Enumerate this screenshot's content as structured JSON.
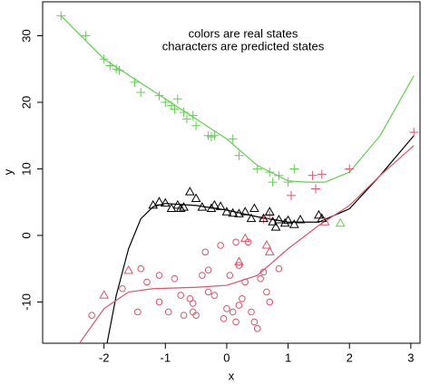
{
  "chart_data": {
    "type": "scatter",
    "xlabel": "x",
    "ylabel": "y",
    "annotations": [
      {
        "text": "colors are real states",
        "color": "#ff0000"
      },
      {
        "text": "characters are predicted states",
        "color": "#000000"
      }
    ],
    "xlim": [
      -3.0,
      3.15
    ],
    "ylim": [
      -16.2,
      35.1
    ],
    "xticks": [
      -2,
      -1,
      0,
      1,
      2,
      3
    ],
    "yticks": [
      -10,
      0,
      10,
      20,
      30
    ],
    "series": [
      {
        "color": "#61D04F",
        "marker": "plus",
        "x": [
          -2.7,
          -2.3,
          -2.0,
          -1.9,
          -1.8,
          -1.75,
          -1.5,
          -1.4,
          -1.1,
          -1.0,
          -0.9,
          -0.85,
          -0.7,
          -0.65,
          -0.5,
          -0.3,
          -0.25,
          -0.2,
          0.1,
          0.2,
          0.5,
          0.7,
          0.75,
          0.85,
          1.0,
          1.1,
          -0.55,
          -0.8
        ],
        "y": [
          33,
          30,
          26.5,
          25.5,
          25,
          24.8,
          23,
          21.5,
          21,
          20,
          19.5,
          19,
          18.5,
          17.5,
          16.5,
          15,
          14.8,
          15,
          14.5,
          12,
          10,
          9.5,
          8,
          9,
          8,
          10,
          18,
          20.5
        ]
      },
      {
        "color": "#DF536B",
        "marker": "plus",
        "x": [
          1.4,
          1.55,
          1.05,
          1.45,
          2.0,
          3.05,
          0.6,
          0.7
        ],
        "y": [
          9,
          9.2,
          6,
          7,
          10,
          15.5,
          2.5,
          3
        ]
      },
      {
        "color": "#000000",
        "marker": "triangle",
        "x": [
          -1.2,
          -1.1,
          -0.9,
          -0.8,
          -0.7,
          -0.6,
          -0.5,
          -0.4,
          -0.25,
          -0.2,
          -0.1,
          0,
          0.1,
          0.2,
          0.3,
          0.4,
          0.45,
          0.6,
          0.7,
          0.75,
          0.8,
          0.85,
          0.95,
          1.0,
          1.1,
          1.2,
          1.5,
          1.55,
          -1.0,
          -0.75
        ],
        "y": [
          4.5,
          5,
          4,
          4.5,
          4.2,
          6.5,
          5.5,
          4.2,
          4,
          4.5,
          4.3,
          3.5,
          3.3,
          3.2,
          3.5,
          2.5,
          4,
          2.5,
          3.5,
          2,
          1.2,
          2.3,
          1.8,
          2.2,
          1.6,
          2.3,
          3,
          2.5,
          4.8,
          4
        ]
      },
      {
        "color": "#DF536B",
        "marker": "triangle",
        "x": [
          -2.0,
          -1.6,
          0.2,
          0.3,
          0.65,
          0.7,
          1.6
        ],
        "y": [
          -9,
          -5.3,
          -4,
          -0.5,
          -1.5,
          -2.5,
          2
        ]
      },
      {
        "color": "#61D04F",
        "marker": "triangle",
        "x": [
          1.85
        ],
        "y": [
          1.8
        ]
      },
      {
        "color": "#DF536B",
        "marker": "circle",
        "x": [
          -2.2,
          -1.7,
          -1.45,
          -1.4,
          -1.3,
          -1.1,
          -1.1,
          -0.95,
          -0.85,
          -0.75,
          -0.7,
          -0.6,
          -0.55,
          -0.55,
          -0.5,
          -0.4,
          -0.35,
          -0.3,
          -0.2,
          -0.1,
          -0.05,
          0,
          0.05,
          0.1,
          0.15,
          0.2,
          0.25,
          0.3,
          0.35,
          0.4,
          0.45,
          0.5,
          0.55,
          0.6,
          0.65,
          -0.3,
          0.2,
          0.7,
          0.85,
          0.15
        ],
        "y": [
          -12,
          -8,
          -11.5,
          -5,
          -7,
          -6,
          -10,
          -11.5,
          -6.5,
          -9,
          -12,
          -9.5,
          -10.2,
          -11.5,
          -12,
          -6,
          -2.5,
          -8.5,
          -9,
          -1.5,
          -12.5,
          -11,
          -6,
          -11.5,
          -13,
          -10.5,
          -9.5,
          -7,
          -1,
          -11.5,
          -13,
          -14,
          -6.5,
          -5.5,
          -8.5,
          -5.2,
          -4.5,
          -10,
          -5,
          -1
        ]
      }
    ],
    "lines": [
      {
        "color": "#61D04F",
        "x": [
          -2.7,
          -2.0,
          -1.0,
          0,
          0.5,
          1.0,
          1.3,
          1.6,
          2.0,
          2.5,
          3.05
        ],
        "y": [
          33,
          26.5,
          20.5,
          14.5,
          10.5,
          8.2,
          8,
          8,
          9.5,
          15,
          24
        ]
      },
      {
        "color": "#000000",
        "x": [
          -1.95,
          -1.8,
          -1.6,
          -1.4,
          -1.2,
          -1.0,
          -0.5,
          0,
          0.5,
          1.0,
          1.5,
          2.0,
          2.5,
          3.05
        ],
        "y": [
          -16.2,
          -9,
          -2,
          2.5,
          4.3,
          4.8,
          4.5,
          3.8,
          2.8,
          2,
          2,
          4,
          9,
          15
        ]
      },
      {
        "color": "#DF536B",
        "x": [
          -2.4,
          -2.0,
          -1.6,
          -1.2,
          -0.5,
          0,
          0.5,
          1.0,
          1.5,
          2.0,
          2.5,
          3.05
        ],
        "y": [
          -16.2,
          -11,
          -8.5,
          -8,
          -7.8,
          -7.5,
          -6,
          -2,
          1.5,
          4.5,
          9,
          13.5
        ]
      }
    ]
  }
}
